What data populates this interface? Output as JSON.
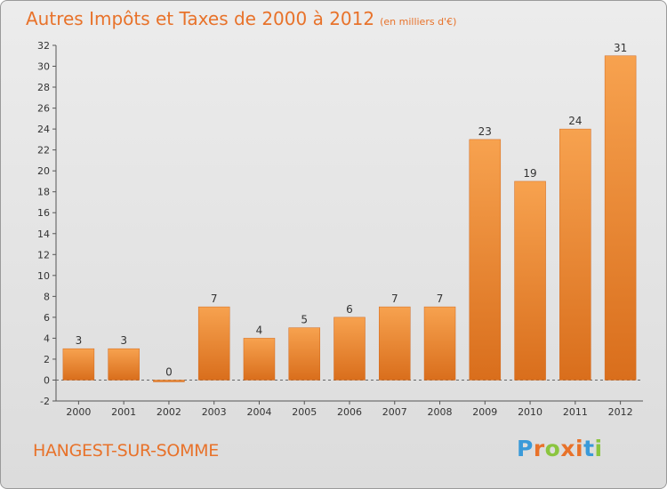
{
  "chart_data": {
    "type": "bar",
    "title": "Autres Impôts et Taxes de 2000 à 2012",
    "unit_note": "(en milliers d'€)",
    "categories": [
      "2000",
      "2001",
      "2002",
      "2003",
      "2004",
      "2005",
      "2006",
      "2007",
      "2008",
      "2009",
      "2010",
      "2011",
      "2012"
    ],
    "values": [
      3,
      3,
      0,
      7,
      4,
      5,
      6,
      7,
      7,
      23,
      19,
      24,
      31
    ],
    "data_labels": [
      "3",
      "3",
      "0",
      "7",
      "4",
      "5",
      "6",
      "7",
      "7",
      "23",
      "19",
      "24",
      "31"
    ],
    "ylim": [
      -2,
      32
    ],
    "yticks": [
      -2,
      0,
      2,
      4,
      6,
      8,
      10,
      12,
      14,
      16,
      18,
      20,
      22,
      24,
      26,
      28,
      30,
      32
    ],
    "grid": false,
    "colors": {
      "bar_light": "#f7a24f",
      "bar_dark": "#d96e1c",
      "accent": "#e8722a"
    }
  },
  "footer": {
    "commune": "HANGEST-SUR-SOMME",
    "logo_letters": [
      "P",
      "r",
      "o",
      "x",
      "i",
      "t",
      "i"
    ],
    "logo_colors": [
      "#3a9ad9",
      "#e8722a",
      "#8bc53f",
      "#e8722a",
      "#e8722a",
      "#3a9ad9",
      "#8bc53f"
    ]
  }
}
